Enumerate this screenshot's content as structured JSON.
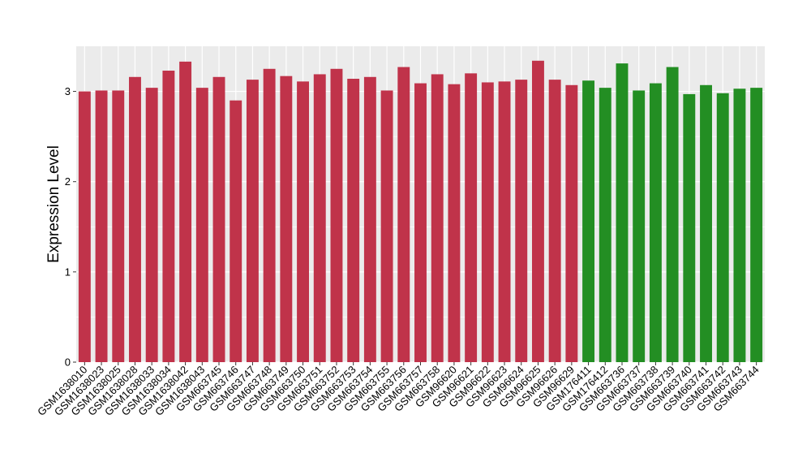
{
  "chart_data": {
    "type": "bar",
    "title": "",
    "xlabel": "",
    "ylabel": "Expression Level",
    "ylim": [
      0,
      3.5
    ],
    "yticks": [
      0,
      1,
      2,
      3
    ],
    "grid": true,
    "legend": "none",
    "categories": [
      "GSM1638010",
      "GSM1638023",
      "GSM1638025",
      "GSM1638028",
      "GSM1638033",
      "GSM1638034",
      "GSM1638042",
      "GSM1638043",
      "GSM663745",
      "GSM663746",
      "GSM663747",
      "GSM663748",
      "GSM663749",
      "GSM663750",
      "GSM663751",
      "GSM663752",
      "GSM663753",
      "GSM663754",
      "GSM663755",
      "GSM663756",
      "GSM663757",
      "GSM663758",
      "GSM96620",
      "GSM96621",
      "GSM96622",
      "GSM96623",
      "GSM96624",
      "GSM96625",
      "GSM96626",
      "GSM96629",
      "GSM176411",
      "GSM176412",
      "GSM663736",
      "GSM663737",
      "GSM663738",
      "GSM663739",
      "GSM663740",
      "GSM663741",
      "GSM663742",
      "GSM663743",
      "GSM663744"
    ],
    "values": [
      3.0,
      3.01,
      3.01,
      3.16,
      3.04,
      3.23,
      3.33,
      3.04,
      3.16,
      2.9,
      3.13,
      3.25,
      3.17,
      3.11,
      3.19,
      3.25,
      3.14,
      3.16,
      3.01,
      3.27,
      3.09,
      3.19,
      3.08,
      3.2,
      3.1,
      3.11,
      3.13,
      3.34,
      3.13,
      3.07,
      3.12,
      3.04,
      3.31,
      3.01,
      3.09,
      3.27,
      2.97,
      3.07,
      2.98,
      3.03,
      3.04
    ],
    "groups": [
      {
        "color": "#c0334a",
        "count": 30
      },
      {
        "color": "#238e23",
        "count": 11
      }
    ],
    "colors": {
      "panel_background": "#ebebeb",
      "grid": "#ffffff",
      "axis_text": "#000000"
    }
  }
}
